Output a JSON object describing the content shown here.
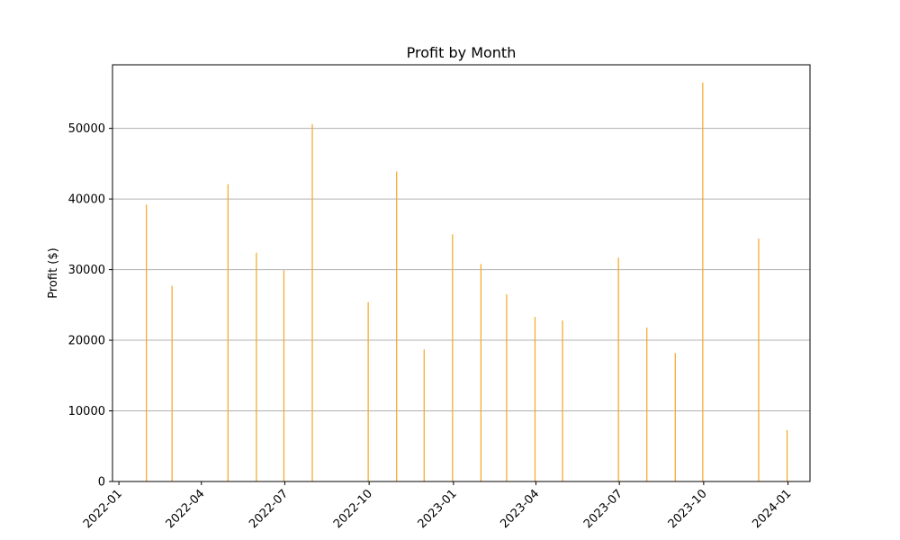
{
  "chart_data": {
    "type": "bar",
    "title": "Profit by Month",
    "xlabel": "",
    "ylabel": "Profit ($)",
    "bar_color": "#f5a623",
    "grid": "y",
    "ylim": [
      0,
      59000
    ],
    "xlim": [
      "2021-12-25",
      "2024-01-25"
    ],
    "yticks": [
      0,
      10000,
      20000,
      30000,
      40000,
      50000
    ],
    "xticks": [
      "2022-01",
      "2022-04",
      "2022-07",
      "2022-10",
      "2023-01",
      "2023-04",
      "2023-07",
      "2023-10",
      "2024-01"
    ],
    "x": [
      "2022-01-31",
      "2022-02-28",
      "2022-04-30",
      "2022-05-31",
      "2022-06-30",
      "2022-07-31",
      "2022-09-30",
      "2022-10-31",
      "2022-11-30",
      "2022-12-31",
      "2023-01-31",
      "2023-02-28",
      "2023-03-31",
      "2023-04-30",
      "2023-06-30",
      "2023-07-31",
      "2023-08-31",
      "2023-09-30",
      "2023-11-30",
      "2023-12-31"
    ],
    "values": [
      39200,
      27700,
      42100,
      32400,
      29900,
      50600,
      25400,
      43900,
      18700,
      35000,
      30800,
      26500,
      23300,
      22800,
      31700,
      21800,
      18200,
      56500,
      34400,
      7300
    ]
  }
}
